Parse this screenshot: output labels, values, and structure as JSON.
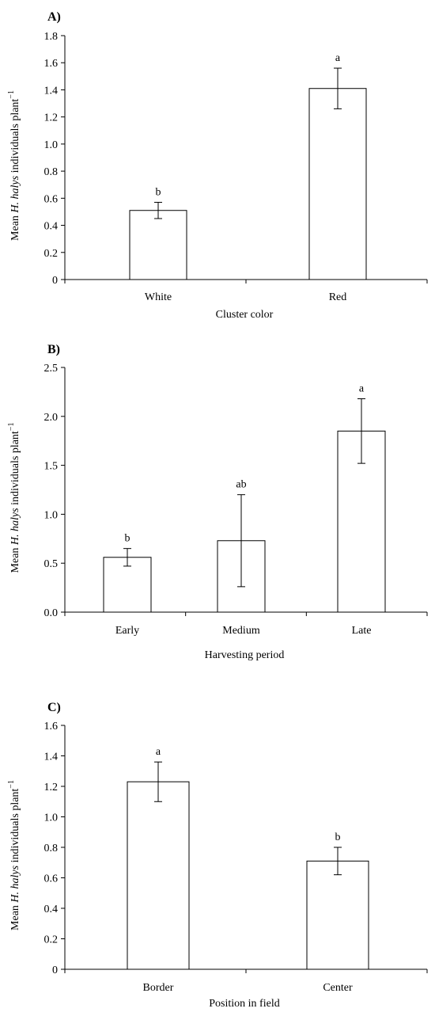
{
  "chart_data": [
    {
      "type": "bar",
      "panel_label": "A)",
      "categories": [
        "White",
        "Red"
      ],
      "values": [
        0.51,
        1.41
      ],
      "errors": [
        0.06,
        0.15
      ],
      "letters": [
        "b",
        "a"
      ],
      "xlabel": "Cluster color",
      "ylabel": {
        "pre": "Mean ",
        "italic": "H. halys",
        "post": " individuals plant",
        "sup": "−1"
      },
      "ylim": [
        0,
        1.8
      ],
      "yticks": [
        "0",
        "0.2",
        "0.4",
        "0.6",
        "0.8",
        "1.0",
        "1.2",
        "1.4",
        "1.6",
        "1.8"
      ],
      "grid": false
    },
    {
      "type": "bar",
      "panel_label": "B)",
      "categories": [
        "Early",
        "Medium",
        "Late"
      ],
      "values": [
        0.56,
        0.73,
        1.85
      ],
      "errors": [
        0.09,
        0.47,
        0.33
      ],
      "letters": [
        "b",
        "ab",
        "a"
      ],
      "xlabel": "Harvesting period",
      "ylabel": {
        "pre": "Mean ",
        "italic": "H. halys",
        "post": " individuals plant",
        "sup": "−1"
      },
      "ylim": [
        0,
        2.5
      ],
      "yticks": [
        "0.0",
        "0.5",
        "1.0",
        "1.5",
        "2.0",
        "2.5"
      ],
      "grid": false
    },
    {
      "type": "bar",
      "panel_label": "C)",
      "categories": [
        "Border",
        "Center"
      ],
      "values": [
        1.23,
        0.71
      ],
      "errors": [
        0.13,
        0.09
      ],
      "letters": [
        "a",
        "b"
      ],
      "xlabel": "Position in field",
      "ylabel": {
        "pre": "Mean ",
        "italic": "H. halys",
        "post": " individuals plant",
        "sup": "−1"
      },
      "ylim": [
        0,
        1.6
      ],
      "yticks": [
        "0",
        "0.2",
        "0.4",
        "0.6",
        "0.8",
        "1.0",
        "1.2",
        "1.4",
        "1.6"
      ],
      "grid": false
    }
  ]
}
